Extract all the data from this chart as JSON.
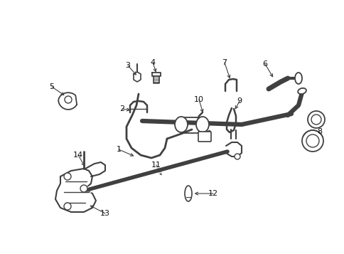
{
  "bg_color": "#ffffff",
  "line_color": "#404040",
  "label_color": "#111111",
  "figsize": [
    4.85,
    3.57
  ],
  "dpi": 100,
  "xlim": [
    0,
    485
  ],
  "ylim": [
    0,
    357
  ]
}
